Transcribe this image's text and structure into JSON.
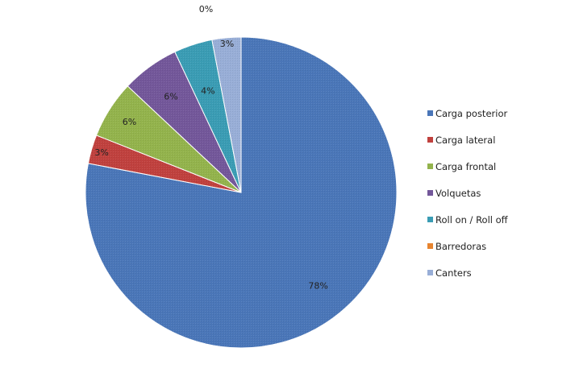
{
  "chart_data": {
    "type": "pie",
    "title": "",
    "categories": [
      "Carga posterior",
      "Carga lateral",
      "Carga frontal",
      "Volquetas",
      "Roll on / Roll off",
      "Barredoras",
      "Canters"
    ],
    "values": [
      78,
      3,
      6,
      6,
      4,
      0,
      3
    ],
    "labels": [
      "78%",
      "3%",
      "6%",
      "6%",
      "4%",
      "0%",
      "3%"
    ],
    "colors": [
      "#4a76b8",
      "#c0413e",
      "#93b34c",
      "#73579a",
      "#3a9cb4",
      "#e7842f",
      "#98aed7"
    ],
    "legend": "right",
    "start": "12 o'clock, clockwise"
  }
}
